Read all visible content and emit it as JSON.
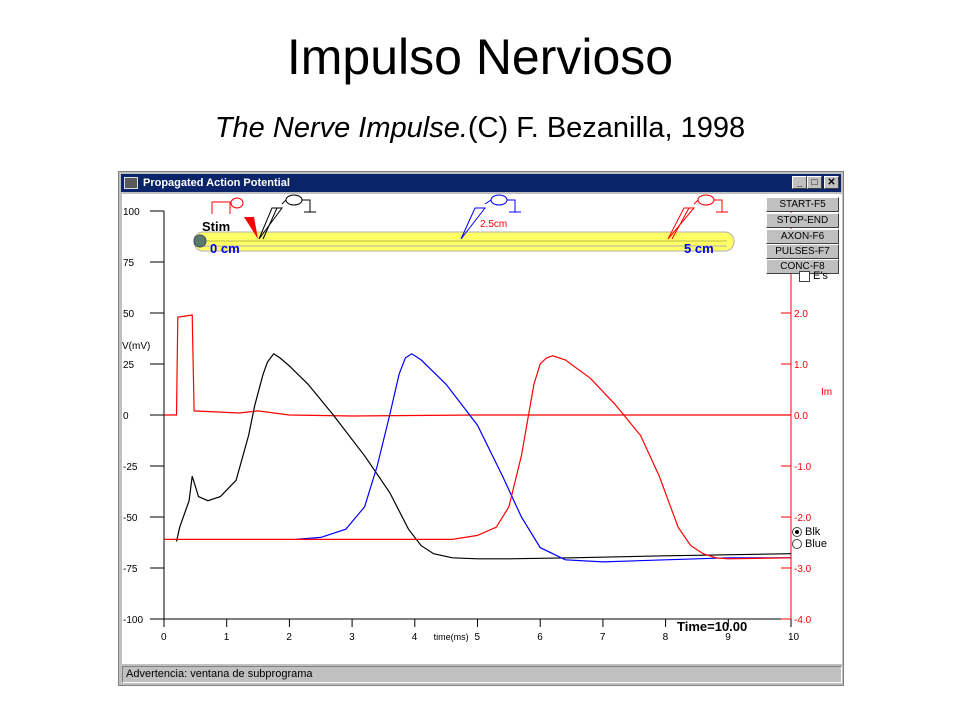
{
  "slide": {
    "title": "Impulso Nervioso",
    "subtitle_italic": "The Nerve Impulse.",
    "subtitle_rest": "(C) F. Bezanilla, 1998"
  },
  "window": {
    "title": "Propagated Action Potential",
    "minimize": "_",
    "maximize": "□",
    "close": "✕",
    "status": "Advertencia: ventana de subprograma"
  },
  "toolbar": {
    "buttons": [
      "START-F5",
      "STOP-END",
      "AXON-F6",
      "PULSES-F7",
      "CONC-F8"
    ],
    "checkbox_label": "E's",
    "radios": [
      {
        "label": "Blk",
        "selected": true
      },
      {
        "label": "Blue",
        "selected": false
      }
    ]
  },
  "axon": {
    "stim_label": "Stim",
    "left_label": "0 cm",
    "mid_label": "2.5cm",
    "right_label": "5 cm"
  },
  "readout": {
    "time": "Time=10.00"
  },
  "chart_data": {
    "type": "line",
    "xlabel": "time(ms)",
    "ylabel": "V(mV)",
    "y2label": "Im",
    "xlim": [
      0,
      10
    ],
    "ylim": [
      -100,
      100
    ],
    "y2lim": [
      -4.0,
      4.0
    ],
    "xticks": [
      "0",
      "1",
      "2",
      "3",
      "4",
      "5",
      "6",
      "7",
      "8",
      "9",
      "10"
    ],
    "yticks": [
      "100",
      "75",
      "50",
      "25",
      "0",
      "-25",
      "-50",
      "-75",
      "-100"
    ],
    "y2ticks": [
      "2.0",
      "1.0",
      "0.0",
      "-1.0",
      "-2.0",
      "-3.0",
      "-4.0"
    ],
    "y2tick_values": [
      2.0,
      1.0,
      0.0,
      -1.0,
      -2.0,
      -3.0,
      -4.0
    ],
    "series": [
      {
        "color": "#ff0000",
        "axis": "y",
        "x": [
          0,
          0.2,
          0.22,
          0.45,
          0.48,
          1.2,
          1.5,
          2.0,
          3.0,
          5.0,
          7.0,
          8.0,
          10.0
        ],
        "y": [
          0,
          0,
          48,
          49,
          2,
          1,
          2,
          0,
          -0.5,
          0,
          0,
          0,
          0
        ]
      },
      {
        "color": "#000000",
        "axis": "y",
        "x": [
          0.2,
          0.25,
          0.4,
          0.45,
          0.55,
          0.7,
          0.9,
          1.15,
          1.35,
          1.45,
          1.58,
          1.65,
          1.7,
          1.75,
          1.85,
          2.0,
          2.3,
          2.7,
          3.2,
          3.6,
          3.9,
          4.1,
          4.3,
          4.6,
          5.0,
          5.5,
          6.5,
          8.0,
          10.0
        ],
        "y": [
          -62,
          -55,
          -42,
          -30,
          -40,
          -42,
          -40,
          -32,
          -10,
          5,
          20,
          26,
          28,
          30,
          28,
          24,
          15,
          0,
          -20,
          -38,
          -56,
          -64,
          -68,
          -70,
          -70.5,
          -70.5,
          -70,
          -69,
          -68
        ]
      },
      {
        "color": "#0000ff",
        "axis": "y",
        "x": [
          2.1,
          2.5,
          2.9,
          3.2,
          3.4,
          3.6,
          3.75,
          3.85,
          3.95,
          4.1,
          4.5,
          5.0,
          5.4,
          5.7,
          6.0,
          6.4,
          7.0,
          8.0,
          9.0,
          10.0
        ],
        "y": [
          -61,
          -60,
          -56,
          -45,
          -25,
          0,
          20,
          28,
          30,
          27,
          15,
          -5,
          -30,
          -50,
          -65,
          -71,
          -72,
          -71,
          -70,
          -70
        ]
      },
      {
        "color": "#ff0000",
        "axis": "y",
        "x": [
          0,
          2.0,
          4.0,
          4.6,
          5.0,
          5.3,
          5.5,
          5.7,
          5.9,
          6.0,
          6.1,
          6.2,
          6.4,
          6.8,
          7.2,
          7.6,
          7.9,
          8.2,
          8.4,
          8.6,
          8.8,
          9.0,
          10.0
        ],
        "y": [
          -61,
          -61,
          -61,
          -61,
          -59,
          -55,
          -45,
          -20,
          15,
          25,
          28,
          29,
          27,
          18,
          5,
          -10,
          -30,
          -55,
          -64,
          -68,
          -70,
          -70.5,
          -70
        ]
      }
    ]
  }
}
